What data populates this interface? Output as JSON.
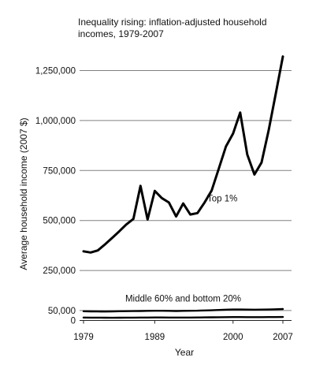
{
  "chart_data": {
    "type": "line",
    "title": "Inequality rising: inflation-adjusted household incomes, 1979-2007",
    "title_lines": [
      "Inequality rising: inflation-adjusted household",
      "incomes, 1979-2007"
    ],
    "xlabel": "Year",
    "ylabel": "Average household income (2007 $)",
    "xlim": [
      1979,
      2007
    ],
    "ylim": [
      0,
      1350000
    ],
    "grid": "horizontal",
    "x_ticks": [
      1979,
      1989,
      2000,
      2007
    ],
    "x_tick_labels": [
      "1979",
      "1989",
      "2000",
      "2007"
    ],
    "y_ticks": [
      0,
      50000,
      250000,
      500000,
      750000,
      1000000,
      1250000
    ],
    "y_tick_labels": [
      "0",
      "50,000",
      "250,000",
      "500,000",
      "750,000",
      "1,000,000",
      "1,250,000"
    ],
    "annotations": [
      {
        "text": "Top 1%",
        "x": 1998.5,
        "y": 595000
      },
      {
        "text": "Middle 60% and bottom 20%",
        "x": 1993,
        "y": 95000
      }
    ],
    "x": [
      1979,
      1980,
      1981,
      1982,
      1983,
      1984,
      1985,
      1986,
      1987,
      1988,
      1989,
      1990,
      1991,
      1992,
      1993,
      1994,
      1995,
      1996,
      1997,
      1998,
      1999,
      2000,
      2001,
      2002,
      2003,
      2004,
      2005,
      2006,
      2007
    ],
    "series": [
      {
        "name": "Top 1%",
        "values": [
          346000,
          340000,
          350000,
          380000,
          412000,
          445000,
          480000,
          508000,
          673000,
          505000,
          648000,
          612000,
          590000,
          520000,
          585000,
          530000,
          537000,
          590000,
          650000,
          760000,
          870000,
          935000,
          1040000,
          830000,
          730000,
          790000,
          950000,
          1135000,
          1320000
        ]
      },
      {
        "name": "Middle 60%",
        "values": [
          46000,
          45500,
          45000,
          44500,
          45000,
          46000,
          46500,
          47000,
          47500,
          48000,
          48500,
          48500,
          48000,
          47500,
          48000,
          48500,
          49000,
          50000,
          51000,
          52500,
          54000,
          55000,
          55000,
          54500,
          54000,
          54500,
          55000,
          56000,
          57000
        ]
      },
      {
        "name": "Bottom 20%",
        "values": [
          14500,
          14200,
          14000,
          13700,
          13600,
          13800,
          14000,
          14200,
          14400,
          14600,
          14800,
          14800,
          14600,
          14400,
          14500,
          14700,
          15000,
          15300,
          15600,
          16000,
          16500,
          17000,
          16900,
          16700,
          16500,
          16600,
          16800,
          17000,
          17200
        ]
      }
    ]
  }
}
